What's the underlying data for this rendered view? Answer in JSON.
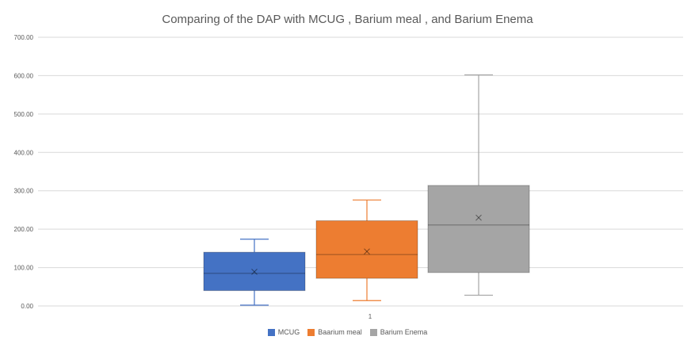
{
  "chart_data": {
    "type": "box",
    "title": "Comparing of the DAP with MCUG , Barium meal , and Barium Enema",
    "xlabel": "",
    "ylabel": "",
    "ylim": [
      0,
      700
    ],
    "ytick_step": 100,
    "ytick_labels": [
      "0.00",
      "100.00",
      "200.00",
      "300.00",
      "400.00",
      "500.00",
      "600.00",
      "700.00"
    ],
    "categories": [
      "1"
    ],
    "grid": true,
    "legend_position": "bottom",
    "series": [
      {
        "name": "MCUG",
        "color": "#4472C4",
        "min": 2,
        "q1": 40,
        "median": 85,
        "mean": 89,
        "q3": 140,
        "max": 174
      },
      {
        "name": "Baarium meal",
        "color": "#ED7D31",
        "min": 14,
        "q1": 72,
        "median": 134,
        "mean": 142,
        "q3": 222,
        "max": 276
      },
      {
        "name": "Barium Enema",
        "color": "#A5A5A5",
        "min": 28,
        "q1": 87,
        "median": 211,
        "mean": 230,
        "q3": 314,
        "max": 602
      }
    ]
  }
}
